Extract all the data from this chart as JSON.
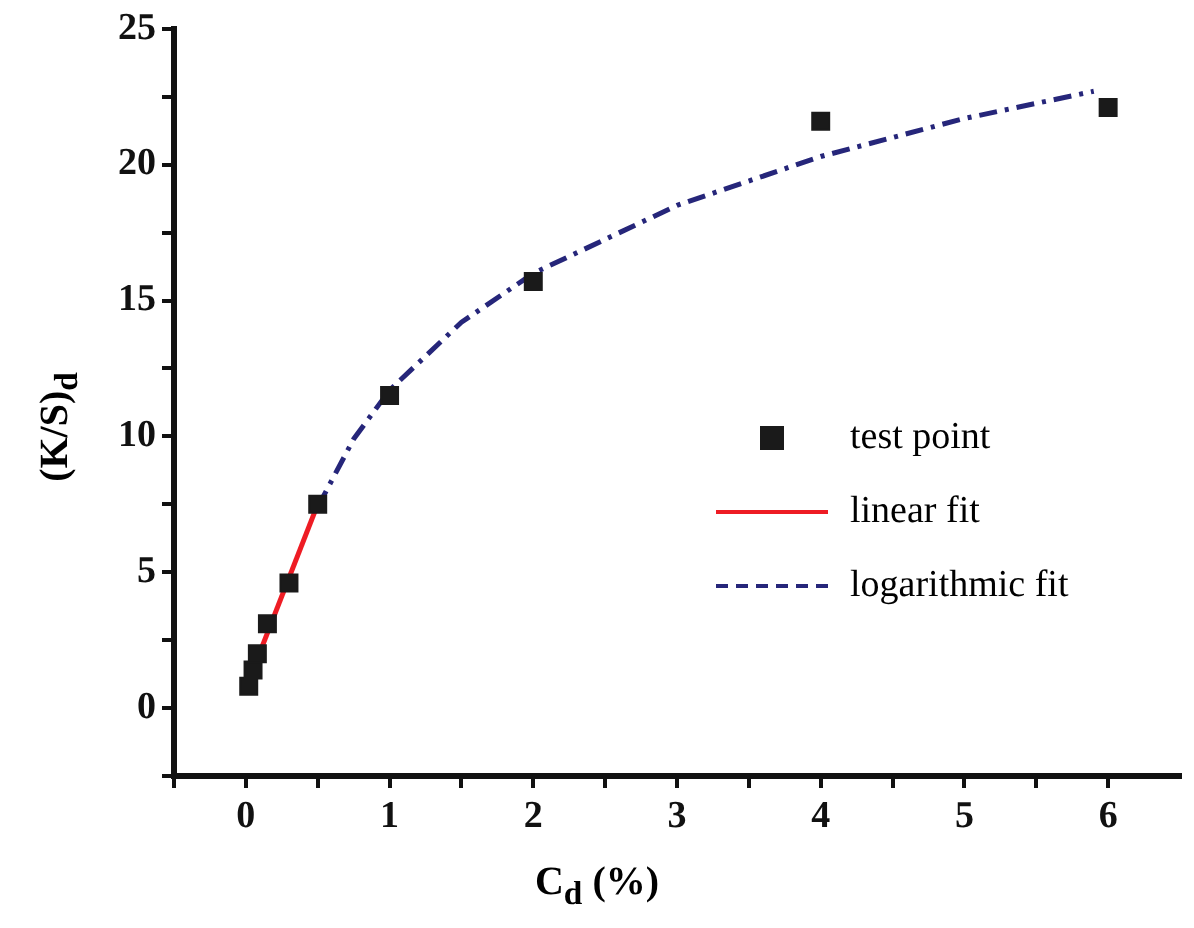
{
  "chart_data": {
    "type": "scatter",
    "xlabel": "C$_{d}$ (%)",
    "ylabel": "(K/S)$_{d}$",
    "xlim": [
      -0.5,
      6.5
    ],
    "ylim": [
      -2.5,
      25
    ],
    "xticks": [
      {
        "value": -0.5,
        "label": null
      },
      0,
      {
        "value": 0.5,
        "label": null
      },
      1,
      {
        "value": 1.5,
        "label": null
      },
      2,
      {
        "value": 2.5,
        "label": null
      },
      3,
      {
        "value": 3.5,
        "label": null
      },
      4,
      {
        "value": 4.5,
        "label": null
      },
      5,
      {
        "value": 5.5,
        "label": null
      },
      6
    ],
    "yticks": [
      {
        "value": -2.5,
        "label": null
      },
      0,
      {
        "value": 2.5,
        "label": null
      },
      5,
      {
        "value": 7.5,
        "label": null
      },
      10,
      {
        "value": 12.5,
        "label": null
      },
      15,
      {
        "value": 17.5,
        "label": null
      },
      20,
      {
        "value": 22.5,
        "label": null
      },
      25
    ],
    "grid": false,
    "legend": "right",
    "marker": "square",
    "series": [
      {
        "name": "test point",
        "color": "#1a1a1a",
        "x": [
          0.02,
          0.05,
          0.08,
          0.15,
          0.3,
          0.5,
          1,
          2,
          4,
          6
        ],
        "values": [
          0.8,
          1.4,
          2.0,
          3.1,
          4.6,
          7.5,
          11.5,
          15.7,
          21.6,
          22.1
        ]
      },
      {
        "name": "linear fit",
        "type": "line",
        "color": "#ee1c24",
        "marker": "none",
        "line_style": "solid",
        "x": [
          0.02,
          0.5
        ],
        "values": [
          1.0,
          7.5
        ]
      },
      {
        "name": "logarithmic fit",
        "type": "line",
        "color": "#26267a",
        "marker": "none",
        "line_style": "dashed",
        "x": [
          0.5,
          0.75,
          1,
          1.5,
          2,
          3,
          4,
          5,
          5.9
        ],
        "values": [
          7.4,
          9.9,
          11.7,
          14.2,
          16.0,
          18.5,
          20.3,
          21.7,
          22.7
        ]
      }
    ]
  }
}
